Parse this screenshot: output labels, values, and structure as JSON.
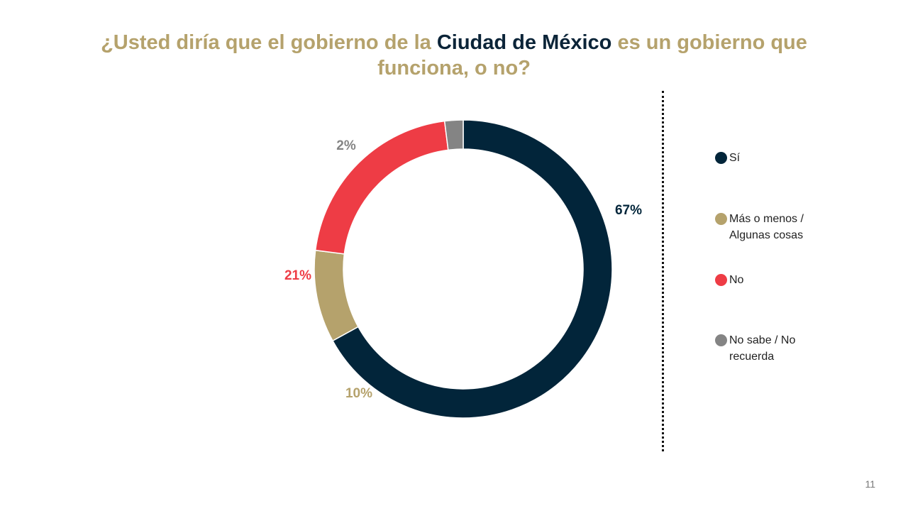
{
  "title": {
    "part1": "¿Usted diría que el gobierno de la ",
    "highlight": "Ciudad de México",
    "part2": " es un gobierno que funciona, o no?"
  },
  "chart_data": {
    "type": "pie",
    "style": "donut",
    "title": "¿Usted diría que el gobierno de la Ciudad de México es un gobierno que funciona, o no?",
    "categories": [
      "Sí",
      "Más o menos / Algunas cosas",
      "No",
      "No sabe / No recuerda"
    ],
    "values": [
      67,
      10,
      21,
      2
    ],
    "value_labels": [
      "67%",
      "10%",
      "21%",
      "2%"
    ],
    "colors": [
      "#02253a",
      "#b5a26c",
      "#ee3c45",
      "#848484"
    ],
    "legend_position": "right"
  },
  "legend": {
    "items": [
      {
        "label": "Sí",
        "color": "#02253a"
      },
      {
        "label": "Más o menos /\nAlgunas cosas",
        "color": "#b5a26c"
      },
      {
        "label": "No",
        "color": "#ee3c45"
      },
      {
        "label": "No sabe / No\nrecuerda",
        "color": "#848484"
      }
    ]
  },
  "page_number": "11"
}
